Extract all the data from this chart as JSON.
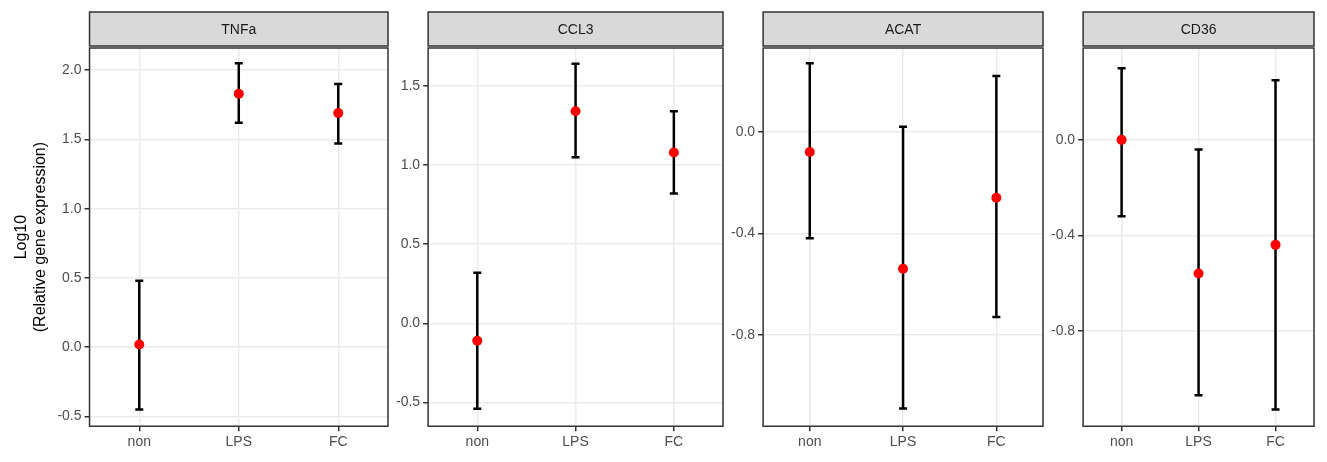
{
  "chart_data": [
    {
      "type": "scatter",
      "title": "TNFa",
      "ylabel": "Log10\n(Relative gene expression)",
      "categories": [
        "non",
        "LPS",
        "FC"
      ],
      "series": [
        {
          "color": "#ff0000",
          "values": [
            0.02,
            1.83,
            1.69
          ],
          "errors": [
            [
              -0.45,
              0.48
            ],
            [
              1.62,
              2.05
            ],
            [
              1.47,
              1.9
            ]
          ]
        }
      ],
      "ylim": [
        -0.57,
        2.16
      ],
      "yticks": [
        -0.5,
        {
          "value": 0,
          "label": "0.0"
        },
        0.5,
        {
          "value": 1,
          "label": "1.0"
        },
        1.5,
        {
          "value": 2,
          "label": "2.0"
        }
      ],
      "grid": true,
      "marker": "circle"
    },
    {
      "type": "scatter",
      "title": "CCL3",
      "categories": [
        "non",
        "LPS",
        "FC"
      ],
      "series": [
        {
          "color": "#ff0000",
          "values": [
            -0.11,
            1.34,
            1.08
          ],
          "errors": [
            [
              -0.54,
              0.32
            ],
            [
              1.05,
              1.64
            ],
            [
              0.82,
              1.34
            ]
          ]
        }
      ],
      "ylim": [
        -0.65,
        1.74
      ],
      "yticks": [
        -0.5,
        {
          "value": 0,
          "label": "0.0"
        },
        0.5,
        {
          "value": 1,
          "label": "1.0"
        },
        1.5
      ],
      "grid": true,
      "marker": "circle"
    },
    {
      "type": "scatter",
      "title": "ACAT",
      "categories": [
        "non",
        "LPS",
        "FC"
      ],
      "series": [
        {
          "color": "#ff0000",
          "values": [
            -0.08,
            -0.54,
            -0.26
          ],
          "errors": [
            [
              -0.42,
              0.27
            ],
            [
              -1.09,
              0.02
            ],
            [
              -0.73,
              0.22
            ]
          ]
        }
      ],
      "ylim": [
        -1.16,
        0.33
      ],
      "yticks": [
        -0.8,
        -0.4,
        {
          "value": 0,
          "label": "0.0"
        }
      ],
      "grid": true,
      "marker": "circle"
    },
    {
      "type": "scatter",
      "title": "CD36",
      "categories": [
        "non",
        "LPS",
        "FC"
      ],
      "series": [
        {
          "color": "#ff0000",
          "values": [
            0.0,
            -0.56,
            -0.44
          ],
          "errors": [
            [
              -0.32,
              0.3
            ],
            [
              -1.07,
              -0.04
            ],
            [
              -1.13,
              0.25
            ]
          ]
        }
      ],
      "ylim": [
        -1.2,
        0.385
      ],
      "yticks": [
        -0.8,
        -0.4,
        {
          "value": 0,
          "label": "0.0"
        }
      ],
      "grid": true,
      "marker": "circle"
    }
  ]
}
